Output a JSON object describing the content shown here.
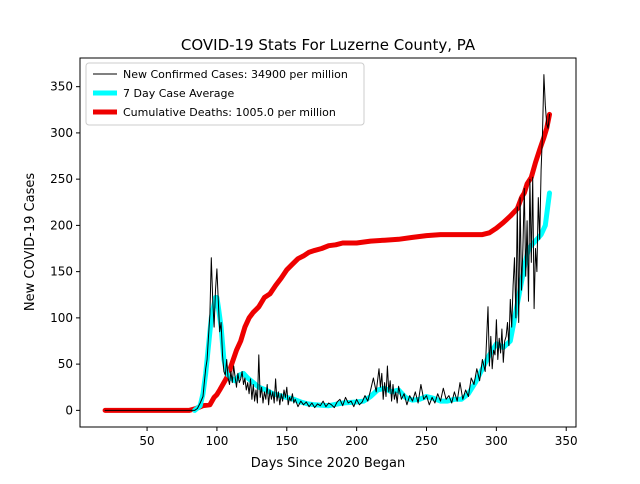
{
  "chart_data": {
    "type": "line",
    "title": "COVID-19 Stats For Luzerne County, PA",
    "xlabel": "Days Since 2020 Began",
    "ylabel": "New COVID-19 Cases",
    "xlim": [
      2,
      357
    ],
    "ylim": [
      -18,
      381
    ],
    "xticks": [
      50,
      100,
      150,
      200,
      250,
      300,
      350
    ],
    "yticks": [
      0,
      50,
      100,
      150,
      200,
      250,
      300,
      350
    ],
    "grid": false,
    "legend_position": "top-left",
    "series": [
      {
        "name": "New Confirmed Cases: 34900 per million",
        "color": "#000000",
        "style": "thin",
        "points": [
          [
            20,
            0
          ],
          [
            30,
            0
          ],
          [
            40,
            0
          ],
          [
            50,
            0
          ],
          [
            60,
            0
          ],
          [
            70,
            0
          ],
          [
            80,
            0
          ],
          [
            84,
            0
          ],
          [
            86,
            2
          ],
          [
            88,
            8
          ],
          [
            90,
            15
          ],
          [
            91,
            30
          ],
          [
            92,
            45
          ],
          [
            93,
            55
          ],
          [
            94,
            80
          ],
          [
            95,
            104
          ],
          [
            96,
            165
          ],
          [
            97,
            120
          ],
          [
            98,
            90
          ],
          [
            99,
            130
          ],
          [
            100,
            153
          ],
          [
            101,
            118
          ],
          [
            102,
            85
          ],
          [
            103,
            95
          ],
          [
            104,
            60
          ],
          [
            105,
            42
          ],
          [
            106,
            38
          ],
          [
            107,
            55
          ],
          [
            108,
            35
          ],
          [
            109,
            28
          ],
          [
            110,
            42
          ],
          [
            111,
            30
          ],
          [
            112,
            48
          ],
          [
            113,
            36
          ],
          [
            114,
            25
          ],
          [
            115,
            40
          ],
          [
            116,
            30
          ],
          [
            117,
            34
          ],
          [
            118,
            42
          ],
          [
            119,
            28
          ],
          [
            120,
            35
          ],
          [
            121,
            22
          ],
          [
            122,
            30
          ],
          [
            123,
            18
          ],
          [
            124,
            34
          ],
          [
            125,
            12
          ],
          [
            126,
            28
          ],
          [
            127,
            10
          ],
          [
            128,
            22
          ],
          [
            129,
            8
          ],
          [
            130,
            60
          ],
          [
            131,
            14
          ],
          [
            132,
            25
          ],
          [
            133,
            8
          ],
          [
            134,
            20
          ],
          [
            135,
            12
          ],
          [
            136,
            28
          ],
          [
            137,
            6
          ],
          [
            138,
            22
          ],
          [
            139,
            12
          ],
          [
            140,
            20
          ],
          [
            141,
            8
          ],
          [
            142,
            34
          ],
          [
            143,
            10
          ],
          [
            144,
            20
          ],
          [
            145,
            6
          ],
          [
            146,
            18
          ],
          [
            147,
            10
          ],
          [
            148,
            22
          ],
          [
            149,
            14
          ],
          [
            150,
            25
          ],
          [
            151,
            6
          ],
          [
            152,
            14
          ],
          [
            153,
            10
          ],
          [
            154,
            18
          ],
          [
            155,
            8
          ],
          [
            156,
            12
          ],
          [
            158,
            4
          ],
          [
            160,
            10
          ],
          [
            162,
            6
          ],
          [
            164,
            9
          ],
          [
            166,
            4
          ],
          [
            168,
            8
          ],
          [
            170,
            3
          ],
          [
            172,
            7
          ],
          [
            174,
            5
          ],
          [
            176,
            10
          ],
          [
            178,
            4
          ],
          [
            180,
            8
          ],
          [
            182,
            6
          ],
          [
            184,
            3
          ],
          [
            186,
            9
          ],
          [
            188,
            12
          ],
          [
            190,
            5
          ],
          [
            192,
            14
          ],
          [
            194,
            8
          ],
          [
            196,
            10
          ],
          [
            198,
            4
          ],
          [
            200,
            12
          ],
          [
            202,
            6
          ],
          [
            204,
            9
          ],
          [
            206,
            16
          ],
          [
            208,
            10
          ],
          [
            210,
            22
          ],
          [
            212,
            35
          ],
          [
            214,
            20
          ],
          [
            216,
            45
          ],
          [
            217,
            25
          ],
          [
            218,
            40
          ],
          [
            219,
            12
          ],
          [
            220,
            30
          ],
          [
            221,
            15
          ],
          [
            222,
            48
          ],
          [
            223,
            20
          ],
          [
            224,
            32
          ],
          [
            225,
            10
          ],
          [
            226,
            28
          ],
          [
            227,
            12
          ],
          [
            228,
            20
          ],
          [
            229,
            8
          ],
          [
            230,
            26
          ],
          [
            232,
            12
          ],
          [
            234,
            18
          ],
          [
            236,
            6
          ],
          [
            238,
            16
          ],
          [
            240,
            10
          ],
          [
            242,
            20
          ],
          [
            244,
            8
          ],
          [
            246,
            28
          ],
          [
            248,
            12
          ],
          [
            250,
            16
          ],
          [
            252,
            6
          ],
          [
            254,
            14
          ],
          [
            256,
            8
          ],
          [
            258,
            18
          ],
          [
            260,
            10
          ],
          [
            262,
            24
          ],
          [
            264,
            12
          ],
          [
            266,
            16
          ],
          [
            268,
            8
          ],
          [
            270,
            20
          ],
          [
            272,
            10
          ],
          [
            274,
            30
          ],
          [
            276,
            12
          ],
          [
            278,
            22
          ],
          [
            280,
            15
          ],
          [
            282,
            35
          ],
          [
            284,
            28
          ],
          [
            286,
            45
          ],
          [
            288,
            32
          ],
          [
            290,
            55
          ],
          [
            292,
            42
          ],
          [
            294,
            112
          ],
          [
            295,
            48
          ],
          [
            296,
            80
          ],
          [
            297,
            45
          ],
          [
            298,
            65
          ],
          [
            299,
            60
          ],
          [
            300,
            98
          ],
          [
            301,
            55
          ],
          [
            302,
            78
          ],
          [
            303,
            62
          ],
          [
            304,
            88
          ],
          [
            305,
            52
          ],
          [
            306,
            75
          ],
          [
            307,
            80
          ],
          [
            308,
            95
          ],
          [
            309,
            70
          ],
          [
            310,
            120
          ],
          [
            311,
            90
          ],
          [
            312,
            135
          ],
          [
            313,
            165
          ],
          [
            314,
            100
          ],
          [
            315,
            220
          ],
          [
            316,
            95
          ],
          [
            317,
            230
          ],
          [
            318,
            130
          ],
          [
            319,
            175
          ],
          [
            320,
            240
          ],
          [
            321,
            145
          ],
          [
            322,
            205
          ],
          [
            323,
            118
          ],
          [
            324,
            250
          ],
          [
            325,
            160
          ],
          [
            326,
            252
          ],
          [
            327,
            110
          ],
          [
            328,
            175
          ],
          [
            329,
            150
          ],
          [
            330,
            230
          ],
          [
            331,
            185
          ],
          [
            332,
            260
          ],
          [
            333,
            300
          ],
          [
            334,
            363
          ],
          [
            335,
            330
          ],
          [
            336,
            310
          ],
          [
            337,
            305
          ],
          [
            338,
            320
          ]
        ]
      },
      {
        "name": "7 Day Case Average",
        "color": "#00ffff",
        "style": "thick",
        "points": [
          [
            84,
            0
          ],
          [
            88,
            5
          ],
          [
            90,
            18
          ],
          [
            92,
            40
          ],
          [
            94,
            70
          ],
          [
            96,
            100
          ],
          [
            98,
            115
          ],
          [
            99,
            122
          ],
          [
            100,
            122
          ],
          [
            101,
            112
          ],
          [
            103,
            90
          ],
          [
            105,
            55
          ],
          [
            107,
            40
          ],
          [
            110,
            35
          ],
          [
            113,
            32
          ],
          [
            116,
            38
          ],
          [
            119,
            40
          ],
          [
            122,
            35
          ],
          [
            126,
            30
          ],
          [
            130,
            25
          ],
          [
            135,
            22
          ],
          [
            140,
            18
          ],
          [
            145,
            16
          ],
          [
            150,
            14
          ],
          [
            155,
            12
          ],
          [
            160,
            9
          ],
          [
            165,
            7
          ],
          [
            170,
            6
          ],
          [
            180,
            5
          ],
          [
            190,
            8
          ],
          [
            200,
            9
          ],
          [
            205,
            10
          ],
          [
            210,
            15
          ],
          [
            215,
            22
          ],
          [
            220,
            24
          ],
          [
            225,
            20
          ],
          [
            230,
            22
          ],
          [
            235,
            14
          ],
          [
            240,
            11
          ],
          [
            245,
            12
          ],
          [
            250,
            15
          ],
          [
            255,
            13
          ],
          [
            260,
            10
          ],
          [
            265,
            10
          ],
          [
            270,
            12
          ],
          [
            275,
            12
          ],
          [
            280,
            18
          ],
          [
            285,
            30
          ],
          [
            290,
            45
          ],
          [
            295,
            60
          ],
          [
            300,
            72
          ],
          [
            305,
            68
          ],
          [
            310,
            75
          ],
          [
            315,
            115
          ],
          [
            320,
            155
          ],
          [
            323,
            175
          ],
          [
            326,
            180
          ],
          [
            329,
            185
          ],
          [
            332,
            190
          ],
          [
            335,
            200
          ],
          [
            338,
            235
          ]
        ]
      },
      {
        "name": "Cumulative Deaths: 1005.0 per million",
        "color": "#ee0000",
        "style": "thick",
        "points": [
          [
            20,
            0
          ],
          [
            30,
            0
          ],
          [
            40,
            0
          ],
          [
            50,
            0
          ],
          [
            60,
            0
          ],
          [
            70,
            0
          ],
          [
            80,
            0
          ],
          [
            85,
            2
          ],
          [
            90,
            5
          ],
          [
            95,
            6
          ],
          [
            98,
            14
          ],
          [
            100,
            17
          ],
          [
            102,
            22
          ],
          [
            105,
            30
          ],
          [
            108,
            38
          ],
          [
            111,
            52
          ],
          [
            114,
            65
          ],
          [
            117,
            75
          ],
          [
            120,
            90
          ],
          [
            123,
            100
          ],
          [
            126,
            106
          ],
          [
            130,
            112
          ],
          [
            134,
            122
          ],
          [
            138,
            126
          ],
          [
            142,
            135
          ],
          [
            146,
            143
          ],
          [
            150,
            152
          ],
          [
            154,
            158
          ],
          [
            158,
            164
          ],
          [
            162,
            167
          ],
          [
            166,
            171
          ],
          [
            170,
            173
          ],
          [
            175,
            175
          ],
          [
            180,
            178
          ],
          [
            185,
            179
          ],
          [
            190,
            181
          ],
          [
            200,
            181
          ],
          [
            210,
            183
          ],
          [
            220,
            184
          ],
          [
            230,
            185
          ],
          [
            240,
            187
          ],
          [
            250,
            189
          ],
          [
            260,
            190
          ],
          [
            270,
            190
          ],
          [
            280,
            190
          ],
          [
            290,
            190
          ],
          [
            295,
            192
          ],
          [
            300,
            197
          ],
          [
            305,
            203
          ],
          [
            310,
            210
          ],
          [
            315,
            218
          ],
          [
            318,
            230
          ],
          [
            320,
            235
          ],
          [
            322,
            245
          ],
          [
            325,
            252
          ],
          [
            328,
            268
          ],
          [
            331,
            282
          ],
          [
            334,
            295
          ],
          [
            336,
            305
          ],
          [
            338,
            320
          ]
        ]
      }
    ]
  }
}
